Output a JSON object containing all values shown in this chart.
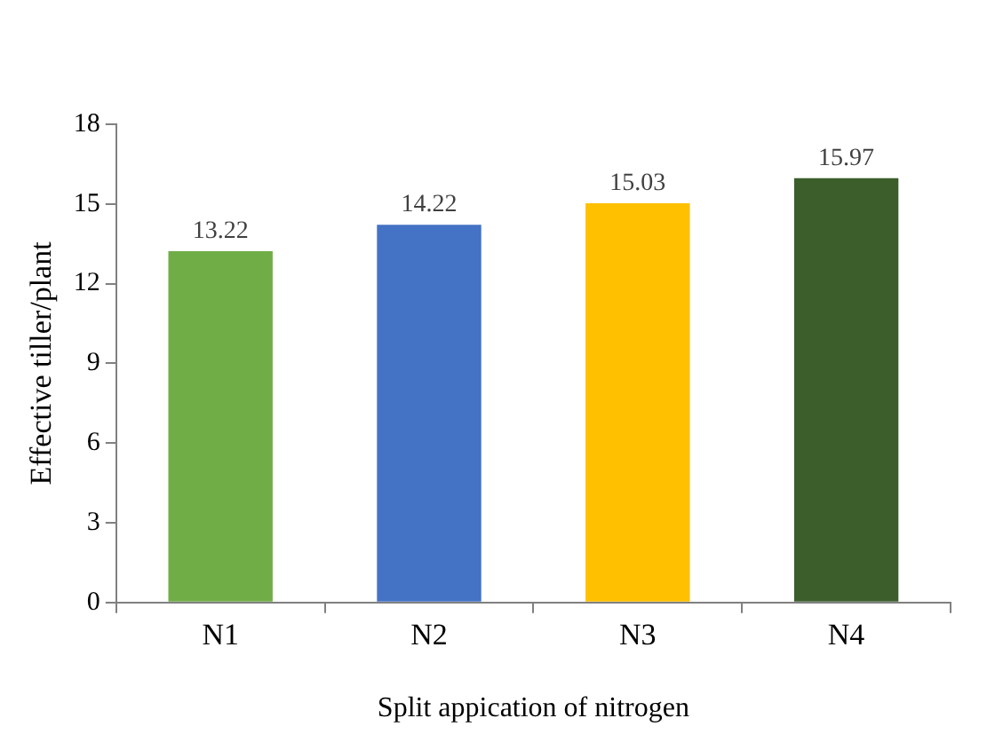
{
  "chart_data": {
    "type": "bar",
    "xlabel": "Split appication of nitrogen",
    "ylabel": "Effective tiller/plant",
    "categories": [
      "N1",
      "N2",
      "N3",
      "N4"
    ],
    "values": [
      13.22,
      14.22,
      15.03,
      15.97
    ],
    "colors": [
      "#70ad47",
      "#4472c4",
      "#ffc000",
      "#3b5e2b"
    ],
    "ylim": [
      0,
      18
    ],
    "yticks": [
      0,
      3,
      6,
      9,
      12,
      15,
      18
    ],
    "grid": false,
    "data_labels": true,
    "legend": false
  }
}
